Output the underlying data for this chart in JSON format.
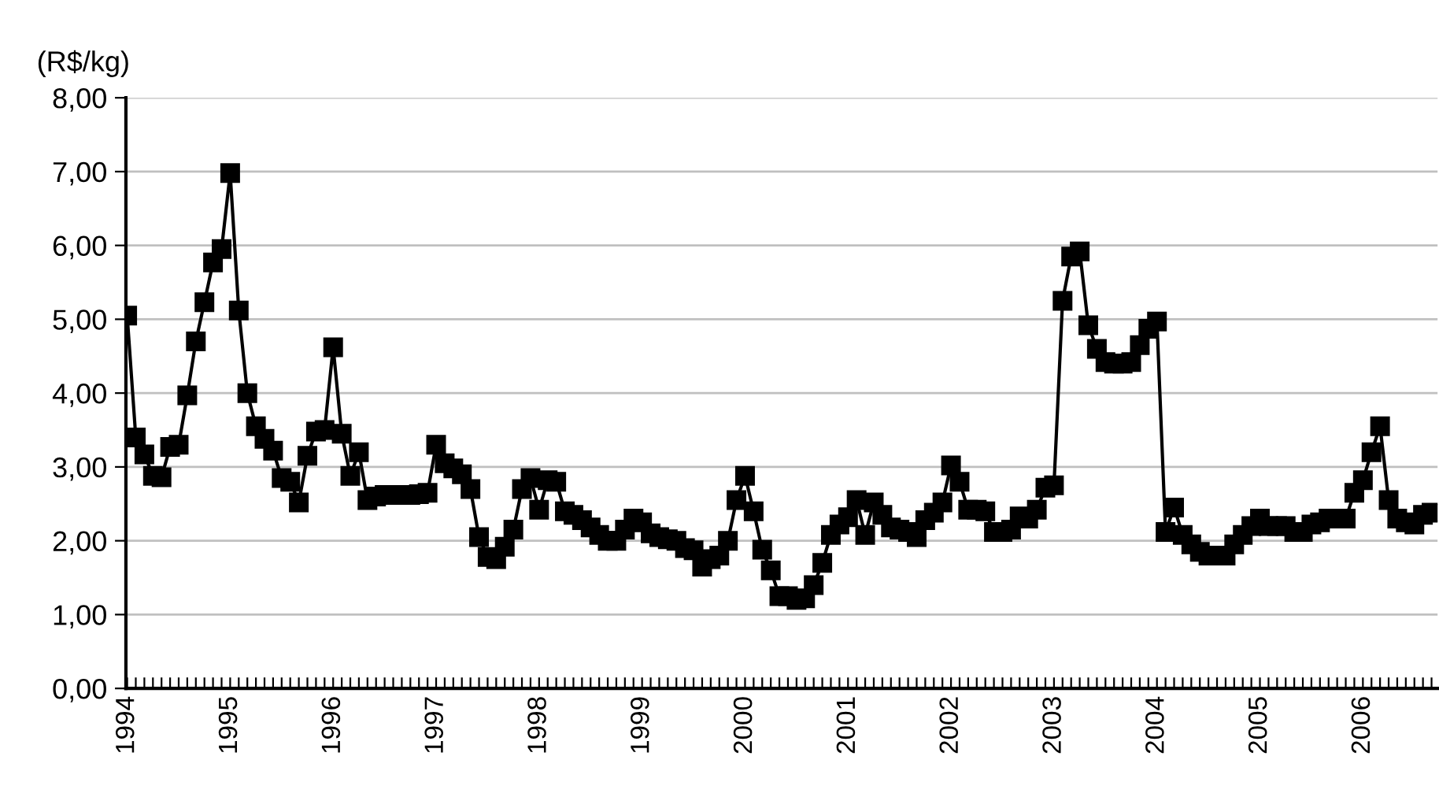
{
  "chart_data": {
    "type": "line",
    "ylabel": "(R$/kg)",
    "categories": [
      "1994",
      null,
      null,
      null,
      null,
      null,
      null,
      null,
      null,
      null,
      null,
      null,
      "1995",
      null,
      null,
      null,
      null,
      null,
      null,
      null,
      null,
      null,
      null,
      null,
      "1996",
      null,
      null,
      null,
      null,
      null,
      null,
      null,
      null,
      null,
      null,
      null,
      "1997",
      null,
      null,
      null,
      null,
      null,
      null,
      null,
      null,
      null,
      null,
      null,
      "1998",
      null,
      null,
      null,
      null,
      null,
      null,
      null,
      null,
      null,
      null,
      null,
      "1999",
      null,
      null,
      null,
      null,
      null,
      null,
      null,
      null,
      null,
      null,
      null,
      "2000",
      null,
      null,
      null,
      null,
      null,
      null,
      null,
      null,
      null,
      null,
      null,
      "2001",
      null,
      null,
      null,
      null,
      null,
      null,
      null,
      null,
      null,
      null,
      null,
      "2002",
      null,
      null,
      null,
      null,
      null,
      null,
      null,
      null,
      null,
      null,
      null,
      "2003",
      null,
      null,
      null,
      null,
      null,
      null,
      null,
      null,
      null,
      null,
      null,
      "2004",
      null,
      null,
      null,
      null,
      null,
      null,
      null,
      null,
      null,
      null,
      null,
      "2005",
      null,
      null,
      null,
      null,
      null,
      null,
      null,
      null,
      null,
      null,
      null,
      "2006",
      null,
      null,
      null,
      null,
      null,
      null,
      null,
      null
    ],
    "series": [
      {
        "color": "#000000",
        "values": [
          5.05,
          3.4,
          3.17,
          2.88,
          2.86,
          3.27,
          3.3,
          3.97,
          4.7,
          5.23,
          5.77,
          5.95,
          6.98,
          5.12,
          4.0,
          3.55,
          3.38,
          3.22,
          2.85,
          2.8,
          2.52,
          3.15,
          3.48,
          3.5,
          4.62,
          3.45,
          2.88,
          3.2,
          2.55,
          2.6,
          2.62,
          2.62,
          2.62,
          2.62,
          2.63,
          2.65,
          3.3,
          3.05,
          2.98,
          2.9,
          2.7,
          2.05,
          1.78,
          1.75,
          1.92,
          2.15,
          2.7,
          2.85,
          2.42,
          2.82,
          2.8,
          2.4,
          2.35,
          2.28,
          2.18,
          2.08,
          2.0,
          2.0,
          2.15,
          2.3,
          2.25,
          2.1,
          2.05,
          2.02,
          2.0,
          1.9,
          1.87,
          1.65,
          1.75,
          1.8,
          2.0,
          2.55,
          2.88,
          2.4,
          1.88,
          1.6,
          1.25,
          1.25,
          1.2,
          1.22,
          1.4,
          1.7,
          2.08,
          2.22,
          2.32,
          2.55,
          2.08,
          2.52,
          2.35,
          2.18,
          2.15,
          2.12,
          2.05,
          2.28,
          2.38,
          2.52,
          3.02,
          2.8,
          2.42,
          2.42,
          2.4,
          2.12,
          2.12,
          2.15,
          2.33,
          2.3,
          2.42,
          2.72,
          2.75,
          5.25,
          5.85,
          5.92,
          4.92,
          4.6,
          4.42,
          4.4,
          4.4,
          4.42,
          4.65,
          4.87,
          4.97,
          2.12,
          2.45,
          2.08,
          1.95,
          1.85,
          1.8,
          1.8,
          1.8,
          1.95,
          2.08,
          2.2,
          2.3,
          2.2,
          2.2,
          2.2,
          2.12,
          2.12,
          2.22,
          2.25,
          2.3,
          2.3,
          2.3,
          2.65,
          2.82,
          3.2,
          3.55,
          2.55,
          2.3,
          2.25,
          2.22,
          2.35,
          2.38
        ]
      }
    ],
    "ylim": [
      0,
      8
    ],
    "yticks": [
      {
        "value": 0,
        "label": "0,00"
      },
      {
        "value": 1,
        "label": "1,00"
      },
      {
        "value": 2,
        "label": "2,00"
      },
      {
        "value": 3,
        "label": "3,00"
      },
      {
        "value": 4,
        "label": "4,00"
      },
      {
        "value": 5,
        "label": "5,00"
      },
      {
        "value": 6,
        "label": "6,00"
      },
      {
        "value": 7,
        "label": "7,00"
      },
      {
        "value": 8,
        "label": "8,00"
      }
    ],
    "grid": "y",
    "marker": "square",
    "line_style": "solid",
    "legend": false
  }
}
